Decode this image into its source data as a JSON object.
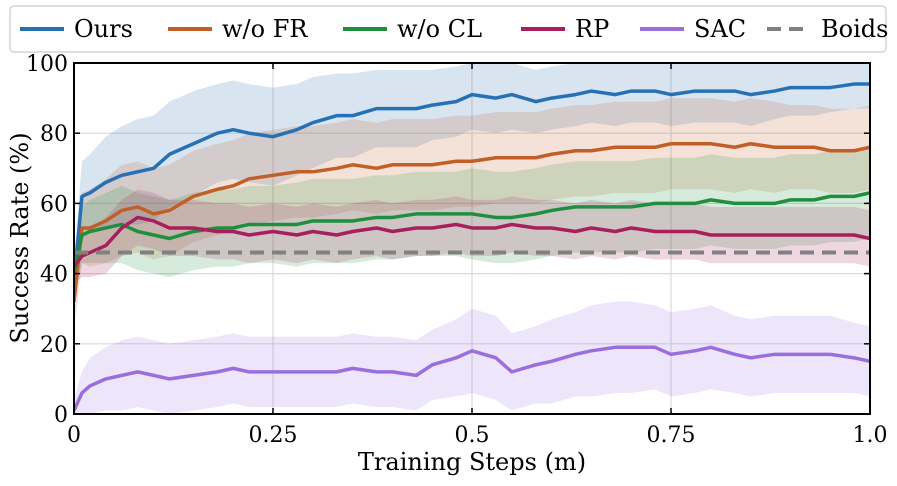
{
  "chart_data": {
    "type": "line",
    "title": "",
    "xlabel": "Training Steps (m)",
    "ylabel": "Success Rate (%)",
    "xlim": [
      0,
      1.0
    ],
    "ylim": [
      0,
      100
    ],
    "xticks": [
      0,
      0.25,
      0.5,
      0.75,
      1.0
    ],
    "xtick_labels": [
      "0",
      "0.25",
      "0.5",
      "0.75",
      "1.0"
    ],
    "yticks": [
      0,
      20,
      40,
      60,
      80,
      100
    ],
    "ytick_labels": [
      "0",
      "20",
      "40",
      "60",
      "80",
      "100"
    ],
    "grid": true,
    "legend_position": "top",
    "x": [
      0,
      0.01,
      0.02,
      0.04,
      0.06,
      0.08,
      0.1,
      0.12,
      0.15,
      0.18,
      0.2,
      0.22,
      0.25,
      0.28,
      0.3,
      0.33,
      0.35,
      0.38,
      0.4,
      0.43,
      0.45,
      0.48,
      0.5,
      0.53,
      0.55,
      0.58,
      0.6,
      0.63,
      0.65,
      0.68,
      0.7,
      0.73,
      0.75,
      0.78,
      0.8,
      0.83,
      0.85,
      0.88,
      0.9,
      0.93,
      0.95,
      0.98,
      1.0
    ],
    "series": [
      {
        "name": "Ours",
        "color": "#2770b4",
        "values": [
          37,
          62,
          63,
          66,
          68,
          69,
          70,
          74,
          77,
          80,
          81,
          80,
          79,
          81,
          83,
          85,
          85,
          87,
          87,
          87,
          88,
          89,
          91,
          90,
          91,
          89,
          90,
          91,
          92,
          91,
          92,
          92,
          91,
          92,
          92,
          92,
          91,
          92,
          93,
          93,
          93,
          94,
          94
        ],
        "band": [
          7,
          10,
          11,
          13,
          14,
          15,
          15,
          15,
          15,
          14,
          14,
          14,
          14,
          13,
          13,
          12,
          12,
          11,
          11,
          11,
          10,
          10,
          10,
          10,
          10,
          9,
          9,
          9,
          9,
          9,
          9,
          9,
          9,
          9,
          9,
          9,
          9,
          8,
          8,
          8,
          7,
          7,
          7
        ]
      },
      {
        "name": "w/o FR",
        "color": "#c25f28",
        "values": [
          32,
          53,
          53,
          55,
          58,
          59,
          57,
          58,
          62,
          64,
          65,
          67,
          68,
          69,
          69,
          70,
          71,
          70,
          71,
          71,
          71,
          72,
          72,
          73,
          73,
          73,
          74,
          75,
          75,
          76,
          76,
          76,
          77,
          77,
          77,
          76,
          77,
          76,
          76,
          76,
          75,
          75,
          76
        ],
        "band": [
          8,
          10,
          11,
          12,
          13,
          13,
          13,
          13,
          13,
          13,
          13,
          13,
          13,
          13,
          13,
          13,
          13,
          13,
          13,
          13,
          13,
          13,
          13,
          13,
          13,
          13,
          13,
          13,
          13,
          13,
          13,
          13,
          13,
          13,
          13,
          13,
          13,
          13,
          12,
          12,
          12,
          12,
          12
        ]
      },
      {
        "name": "w/o CL",
        "color": "#1f8f3f",
        "values": [
          40,
          51,
          52,
          53,
          54,
          52,
          51,
          50,
          52,
          53,
          53,
          54,
          54,
          54,
          55,
          55,
          55,
          56,
          56,
          57,
          57,
          57,
          57,
          56,
          56,
          57,
          58,
          59,
          59,
          59,
          59,
          60,
          60,
          60,
          61,
          60,
          60,
          60,
          61,
          61,
          62,
          62,
          63
        ],
        "band": [
          7,
          8,
          9,
          10,
          11,
          11,
          11,
          11,
          11,
          11,
          11,
          11,
          11,
          12,
          12,
          12,
          12,
          12,
          12,
          12,
          12,
          12,
          13,
          13,
          13,
          13,
          13,
          13,
          13,
          13,
          13,
          13,
          13,
          13,
          13,
          13,
          13,
          13,
          13,
          13,
          13,
          13,
          13
        ]
      },
      {
        "name": "RP",
        "color": "#a71f5c",
        "values": [
          42,
          45,
          46,
          48,
          53,
          56,
          55,
          53,
          53,
          52,
          52,
          51,
          52,
          51,
          52,
          51,
          52,
          53,
          52,
          53,
          53,
          54,
          53,
          53,
          54,
          53,
          53,
          52,
          53,
          52,
          53,
          52,
          52,
          52,
          51,
          51,
          51,
          51,
          51,
          51,
          51,
          51,
          50
        ],
        "band": [
          5,
          6,
          7,
          8,
          8,
          8,
          8,
          8,
          8,
          8,
          8,
          8,
          8,
          8,
          8,
          8,
          8,
          8,
          8,
          8,
          8,
          8,
          8,
          8,
          8,
          8,
          8,
          8,
          8,
          8,
          8,
          8,
          8,
          8,
          8,
          8,
          8,
          8,
          8,
          8,
          8,
          8,
          8
        ]
      },
      {
        "name": "SAC",
        "color": "#9a6fdc",
        "values": [
          1,
          6,
          8,
          10,
          11,
          12,
          11,
          10,
          11,
          12,
          13,
          12,
          12,
          12,
          12,
          12,
          13,
          12,
          12,
          11,
          14,
          16,
          18,
          16,
          12,
          14,
          15,
          17,
          18,
          19,
          19,
          19,
          17,
          18,
          19,
          17,
          16,
          17,
          17,
          17,
          17,
          16,
          15
        ],
        "band": [
          3,
          6,
          8,
          9,
          10,
          10,
          10,
          10,
          10,
          10,
          10,
          10,
          10,
          10,
          10,
          10,
          10,
          10,
          10,
          10,
          10,
          11,
          12,
          12,
          11,
          11,
          12,
          12,
          13,
          13,
          13,
          12,
          12,
          12,
          12,
          11,
          11,
          11,
          11,
          11,
          11,
          10,
          10
        ]
      },
      {
        "name": "Boids",
        "color": "#808080",
        "dashed": true,
        "constant": 46
      }
    ]
  }
}
